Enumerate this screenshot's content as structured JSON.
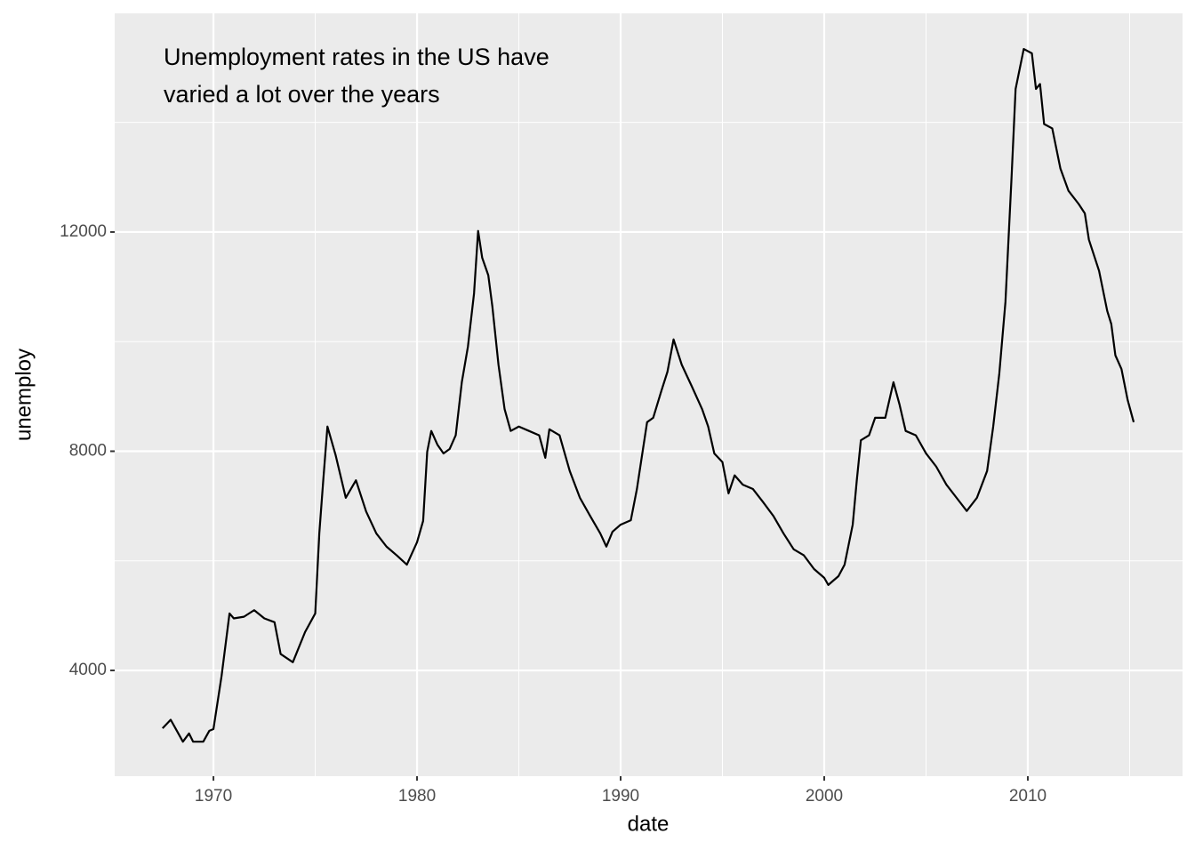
{
  "chart_data": {
    "type": "line",
    "annotation": [
      "Unemployment rates in the US have",
      "varied a lot over the years"
    ],
    "xlabel": "date",
    "ylabel": "unemploy",
    "x": [
      1967.5,
      1967.9,
      1968.2,
      1968.5,
      1968.8,
      1969.0,
      1969.5,
      1969.8,
      1970.0,
      1970.4,
      1970.79,
      1971.0,
      1971.5,
      1972.0,
      1972.5,
      1973.0,
      1973.3,
      1973.9,
      1974.5,
      1975.0,
      1975.2,
      1975.4,
      1975.6,
      1976.0,
      1976.5,
      1977.0,
      1977.5,
      1978.0,
      1978.5,
      1979.0,
      1979.5,
      1980.0,
      1980.3,
      1980.5,
      1980.7,
      1981.0,
      1981.3,
      1981.6,
      1981.9,
      1982.2,
      1982.5,
      1982.8,
      1983.0,
      1983.2,
      1983.5,
      1983.7,
      1984.0,
      1984.3,
      1984.6,
      1985.0,
      1985.5,
      1986.0,
      1986.3,
      1986.5,
      1987.0,
      1987.5,
      1988.0,
      1988.5,
      1989.0,
      1989.3,
      1989.6,
      1990.0,
      1990.5,
      1990.8,
      1991.0,
      1991.3,
      1991.6,
      1992.0,
      1992.3,
      1992.6,
      1993.0,
      1993.5,
      1994.0,
      1994.3,
      1994.6,
      1995.0,
      1995.3,
      1995.6,
      1996.0,
      1996.5,
      1997.0,
      1997.5,
      1998.0,
      1998.5,
      1999.0,
      1999.5,
      2000.0,
      2000.2,
      2000.7,
      2001.0,
      2001.4,
      2001.6,
      2001.8,
      2002.2,
      2002.5,
      2003.0,
      2003.4,
      2003.7,
      2004.0,
      2004.5,
      2005.0,
      2005.5,
      2006.0,
      2006.5,
      2007.0,
      2007.5,
      2008.0,
      2008.3,
      2008.6,
      2008.9,
      2009.2,
      2009.4,
      2009.8,
      2010.2,
      2010.4,
      2010.6,
      2010.8,
      2011.2,
      2011.6,
      2012.0,
      2012.5,
      2012.8,
      2013.0,
      2013.5,
      2013.9,
      2014.1,
      2014.3,
      2014.6,
      2014.9,
      2015.2
    ],
    "values": [
      2944,
      3100,
      2900,
      2700,
      2850,
      2700,
      2700,
      2900,
      2930,
      3900,
      5040,
      4950,
      4980,
      5100,
      4950,
      4880,
      4300,
      4150,
      4700,
      5040,
      6500,
      7500,
      8450,
      7930,
      7150,
      7470,
      6900,
      6500,
      6260,
      6100,
      5930,
      6340,
      6730,
      7990,
      8370,
      8120,
      7960,
      8040,
      8290,
      9260,
      9910,
      10880,
      12020,
      11530,
      11210,
      10640,
      9580,
      8770,
      8370,
      8450,
      8370,
      8290,
      7880,
      8400,
      8290,
      7640,
      7150,
      6820,
      6500,
      6260,
      6530,
      6660,
      6740,
      7310,
      7800,
      8530,
      8610,
      9100,
      9450,
      10040,
      9580,
      9180,
      8770,
      8450,
      7960,
      7800,
      7230,
      7560,
      7390,
      7310,
      7070,
      6820,
      6500,
      6210,
      6100,
      5850,
      5690,
      5560,
      5720,
      5930,
      6660,
      7470,
      8200,
      8290,
      8610,
      8610,
      9260,
      8850,
      8370,
      8290,
      7960,
      7720,
      7390,
      7150,
      6910,
      7150,
      7640,
      8450,
      9420,
      10720,
      12990,
      14610,
      15340,
      15260,
      14610,
      14700,
      13970,
      13890,
      13160,
      12750,
      12510,
      12340,
      11860,
      11290,
      10560,
      10320,
      9750,
      9500,
      8940,
      8530
    ],
    "color": "#000000",
    "xlim": [
      1965.15,
      2017.6
    ],
    "xticks": [
      1970,
      1980,
      1990,
      2000,
      2010
    ],
    "minor_xticks": [
      1975,
      1985,
      1995,
      2005,
      2015
    ],
    "ylim": [
      2070,
      15990
    ],
    "yticks": [
      4000,
      8000,
      12000
    ],
    "minor_yticks": [
      6000,
      10000,
      14000
    ],
    "grid": true
  }
}
